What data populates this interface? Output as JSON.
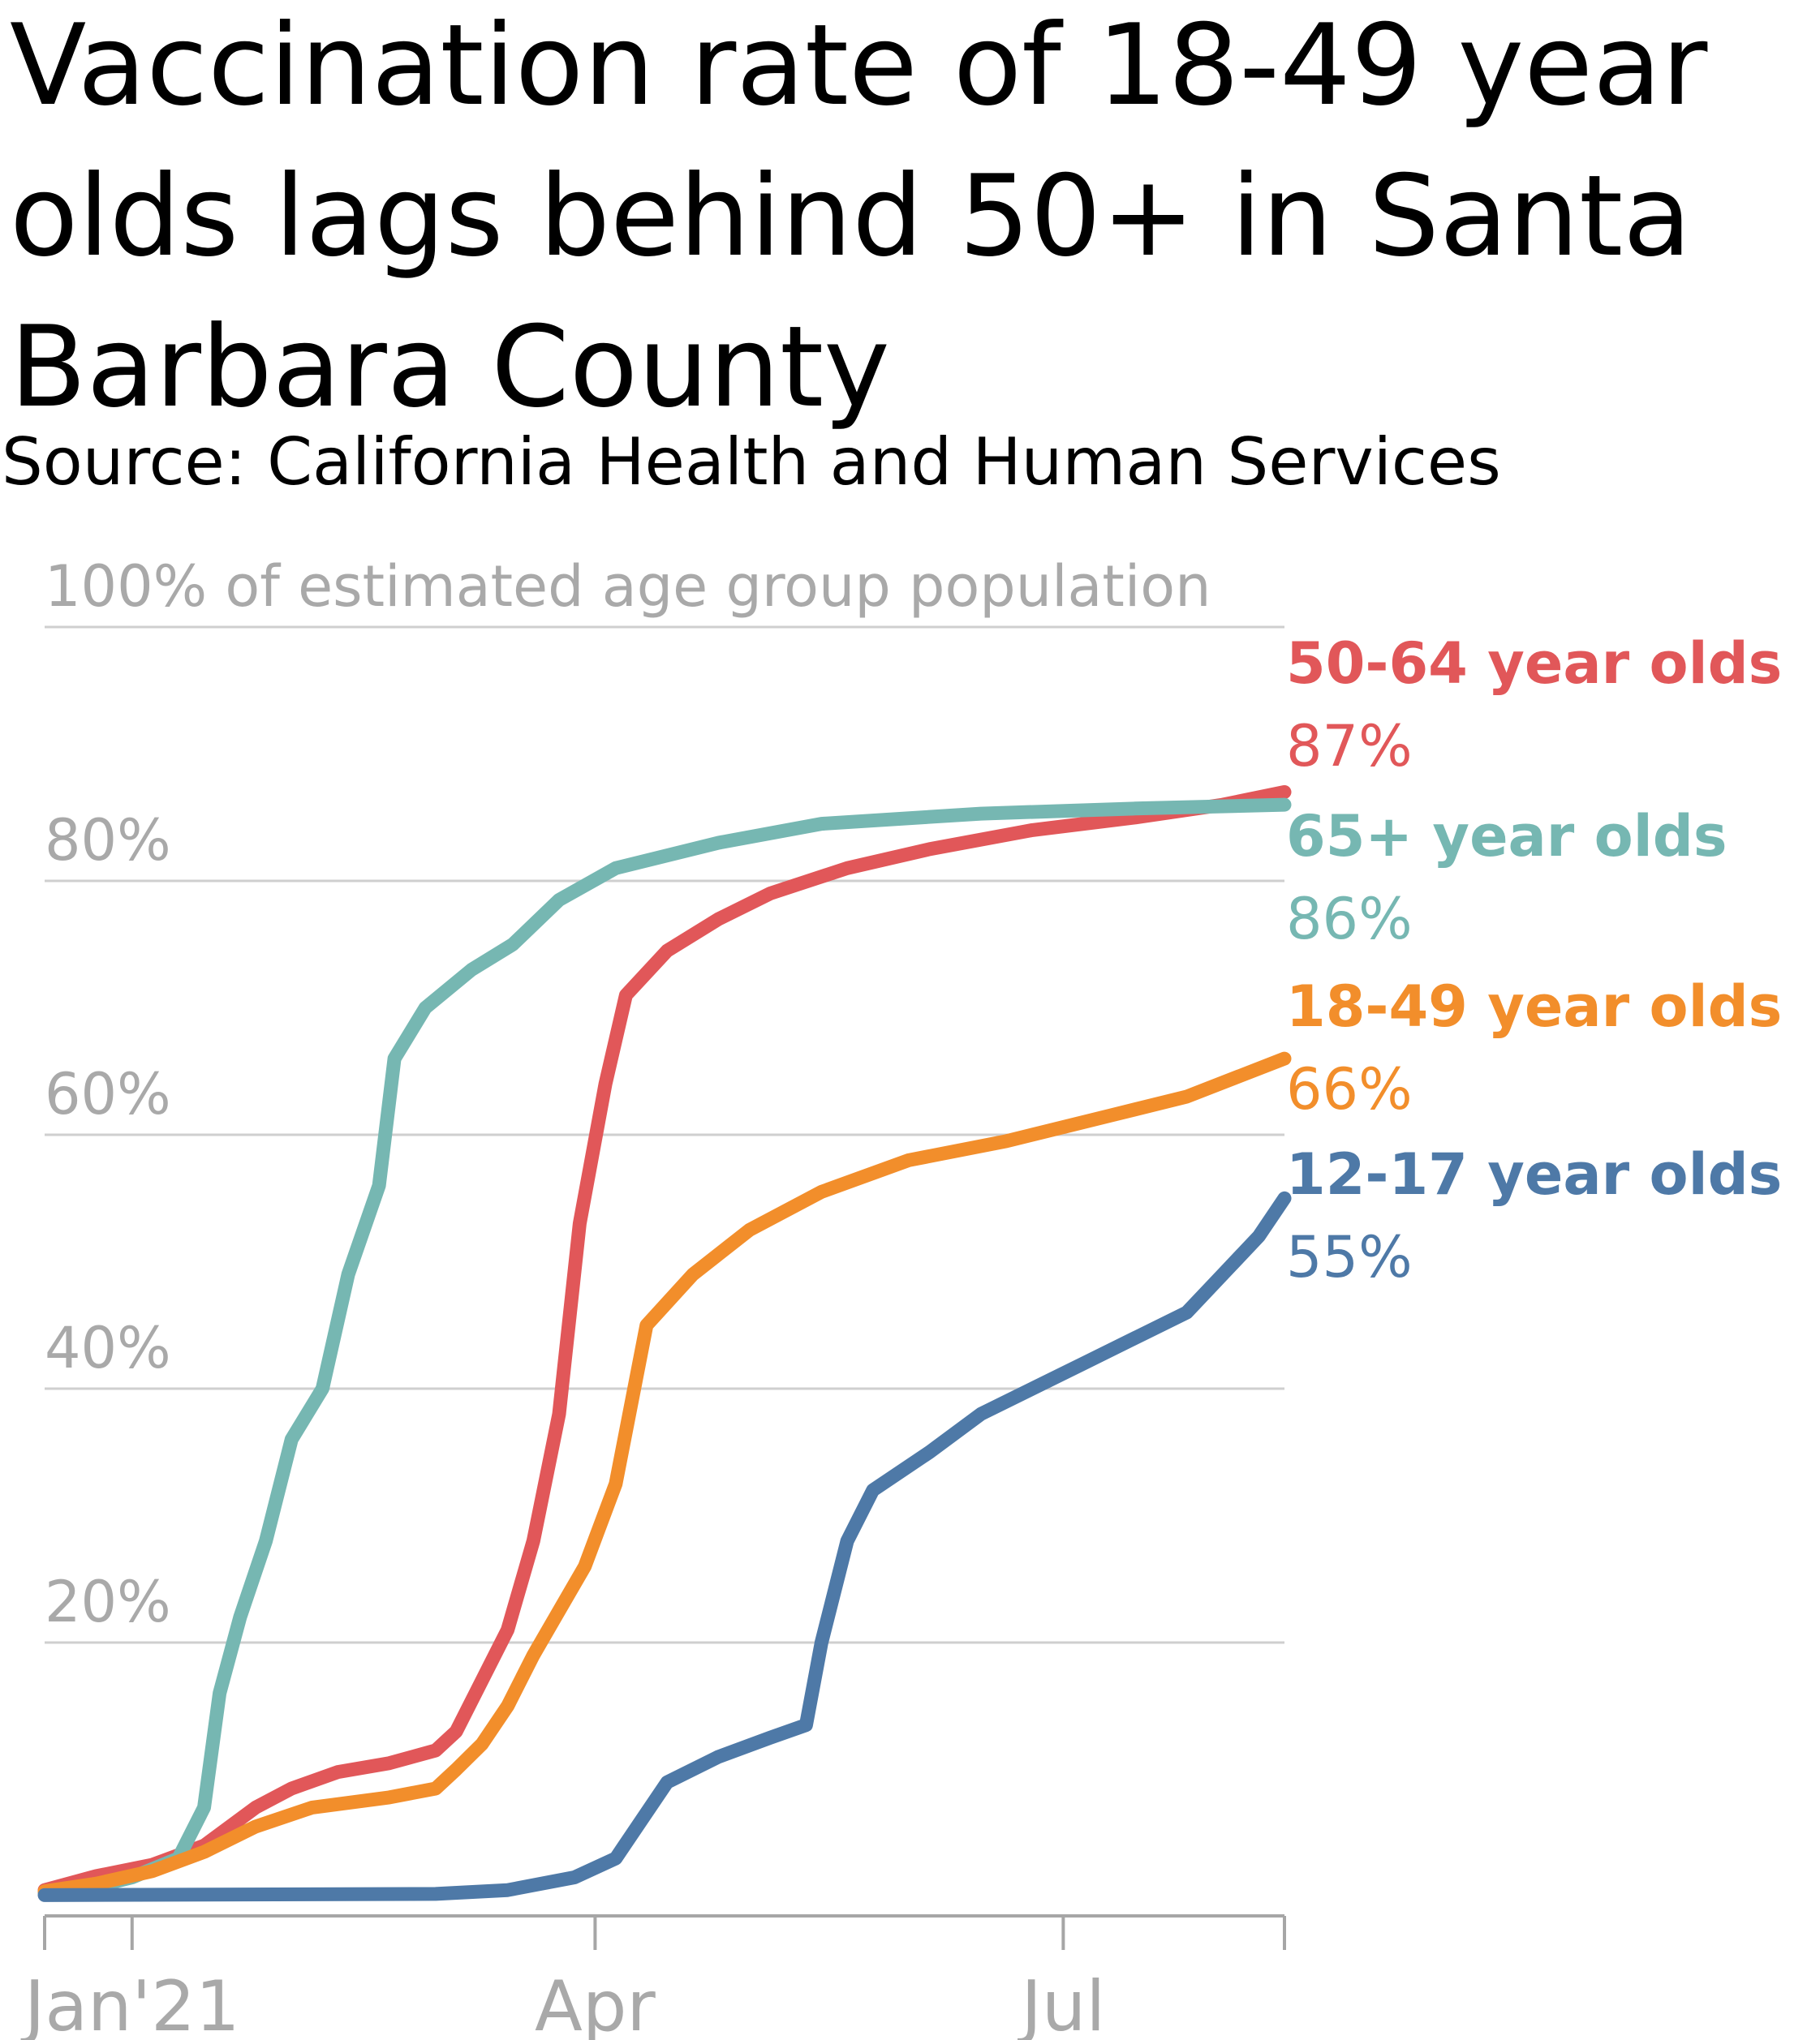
{
  "title": "Vaccination rate of 18-49 year olds lags behind 50+ in Santa Barbara County",
  "subtitle": "Source: California Health and Human Services",
  "chart_data": {
    "type": "line",
    "ylabel": "",
    "y_top_label": "100% of estimated age group population",
    "ylim": [
      0,
      100
    ],
    "y_ticks": [
      {
        "value": 20,
        "label": "20%"
      },
      {
        "value": 40,
        "label": "40%"
      },
      {
        "value": 60,
        "label": "60%"
      },
      {
        "value": 80,
        "label": "80%"
      },
      {
        "value": 100,
        "label": "100% of estimated age group population"
      }
    ],
    "xlim": [
      "2020-12-15",
      "2021-08-13"
    ],
    "x_ticks": [
      {
        "date": "2020-12-15",
        "label": ""
      },
      {
        "date": "2021-01-01",
        "label": "Jan'21"
      },
      {
        "date": "2021-04-01",
        "label": "Apr"
      },
      {
        "date": "2021-07-01",
        "label": "Jul"
      },
      {
        "date": "2021-08-13",
        "label": ""
      }
    ],
    "grid": true,
    "legend": "direct labels at right end of lines",
    "series": [
      {
        "name": "50-64 year olds",
        "end_label": "87%",
        "color": "#e15759",
        "points": [
          [
            "2020-12-15",
            0.5
          ],
          [
            "2020-12-25",
            1.6
          ],
          [
            "2021-01-05",
            2.5
          ],
          [
            "2021-01-15",
            4.0
          ],
          [
            "2021-01-25",
            7.0
          ],
          [
            "2021-02-01",
            8.5
          ],
          [
            "2021-02-10",
            9.8
          ],
          [
            "2021-02-20",
            10.5
          ],
          [
            "2021-03-01",
            11.5
          ],
          [
            "2021-03-05",
            13.0
          ],
          [
            "2021-03-10",
            17.0
          ],
          [
            "2021-03-15",
            21.0
          ],
          [
            "2021-03-20",
            28.0
          ],
          [
            "2021-03-25",
            38.0
          ],
          [
            "2021-03-29",
            53.0
          ],
          [
            "2021-04-03",
            64.0
          ],
          [
            "2021-04-07",
            71.0
          ],
          [
            "2021-04-15",
            74.5
          ],
          [
            "2021-04-25",
            77.0
          ],
          [
            "2021-05-05",
            79.0
          ],
          [
            "2021-05-20",
            81.0
          ],
          [
            "2021-06-05",
            82.5
          ],
          [
            "2021-06-25",
            84.0
          ],
          [
            "2021-07-15",
            85.0
          ],
          [
            "2021-08-01",
            86.0
          ],
          [
            "2021-08-13",
            87.0
          ]
        ]
      },
      {
        "name": "65+ year olds",
        "end_label": "86%",
        "color": "#76b7b2",
        "points": [
          [
            "2020-12-15",
            0.3
          ],
          [
            "2020-12-25",
            0.8
          ],
          [
            "2021-01-01",
            1.5
          ],
          [
            "2021-01-10",
            3.0
          ],
          [
            "2021-01-15",
            7.0
          ],
          [
            "2021-01-18",
            16.0
          ],
          [
            "2021-01-22",
            22.0
          ],
          [
            "2021-01-27",
            28.0
          ],
          [
            "2021-02-01",
            36.0
          ],
          [
            "2021-02-07",
            40.0
          ],
          [
            "2021-02-12",
            49.0
          ],
          [
            "2021-02-18",
            56.0
          ],
          [
            "2021-02-21",
            66.0
          ],
          [
            "2021-02-27",
            70.0
          ],
          [
            "2021-03-08",
            73.0
          ],
          [
            "2021-03-16",
            75.0
          ],
          [
            "2021-03-25",
            78.5
          ],
          [
            "2021-04-05",
            81.0
          ],
          [
            "2021-04-25",
            83.0
          ],
          [
            "2021-05-15",
            84.5
          ],
          [
            "2021-06-15",
            85.3
          ],
          [
            "2021-07-15",
            85.7
          ],
          [
            "2021-08-13",
            86.0
          ]
        ]
      },
      {
        "name": "18-49 year olds",
        "end_label": "66%",
        "color": "#f28e2b",
        "points": [
          [
            "2020-12-15",
            0.4
          ],
          [
            "2020-12-25",
            1.0
          ],
          [
            "2021-01-05",
            2.0
          ],
          [
            "2021-01-15",
            3.5
          ],
          [
            "2021-01-25",
            5.5
          ],
          [
            "2021-02-05",
            7.0
          ],
          [
            "2021-02-20",
            7.8
          ],
          [
            "2021-03-01",
            8.5
          ],
          [
            "2021-03-05",
            10.0
          ],
          [
            "2021-03-10",
            12.0
          ],
          [
            "2021-03-15",
            15.0
          ],
          [
            "2021-03-20",
            19.0
          ],
          [
            "2021-03-25",
            22.5
          ],
          [
            "2021-03-30",
            26.0
          ],
          [
            "2021-04-05",
            32.5
          ],
          [
            "2021-04-11",
            45.0
          ],
          [
            "2021-04-20",
            49.0
          ],
          [
            "2021-05-01",
            52.5
          ],
          [
            "2021-05-15",
            55.5
          ],
          [
            "2021-06-01",
            58.0
          ],
          [
            "2021-06-20",
            59.5
          ],
          [
            "2021-07-10",
            61.5
          ],
          [
            "2021-07-25",
            63.0
          ],
          [
            "2021-08-13",
            66.0
          ]
        ]
      },
      {
        "name": "12-17 year olds",
        "end_label": "55%",
        "color": "#4e79a7",
        "points": [
          [
            "2020-12-15",
            0.1
          ],
          [
            "2021-03-01",
            0.2
          ],
          [
            "2021-03-15",
            0.5
          ],
          [
            "2021-03-28",
            1.5
          ],
          [
            "2021-04-05",
            3.0
          ],
          [
            "2021-04-10",
            6.0
          ],
          [
            "2021-04-15",
            9.0
          ],
          [
            "2021-04-25",
            11.0
          ],
          [
            "2021-05-05",
            12.5
          ],
          [
            "2021-05-12",
            13.5
          ],
          [
            "2021-05-15",
            20.0
          ],
          [
            "2021-05-20",
            28.0
          ],
          [
            "2021-05-25",
            32.0
          ],
          [
            "2021-06-05",
            35.0
          ],
          [
            "2021-06-15",
            38.0
          ],
          [
            "2021-06-25",
            40.0
          ],
          [
            "2021-07-05",
            42.0
          ],
          [
            "2021-07-15",
            44.0
          ],
          [
            "2021-07-25",
            46.0
          ],
          [
            "2021-08-01",
            49.0
          ],
          [
            "2021-08-08",
            52.0
          ],
          [
            "2021-08-13",
            55.0
          ]
        ]
      }
    ]
  }
}
